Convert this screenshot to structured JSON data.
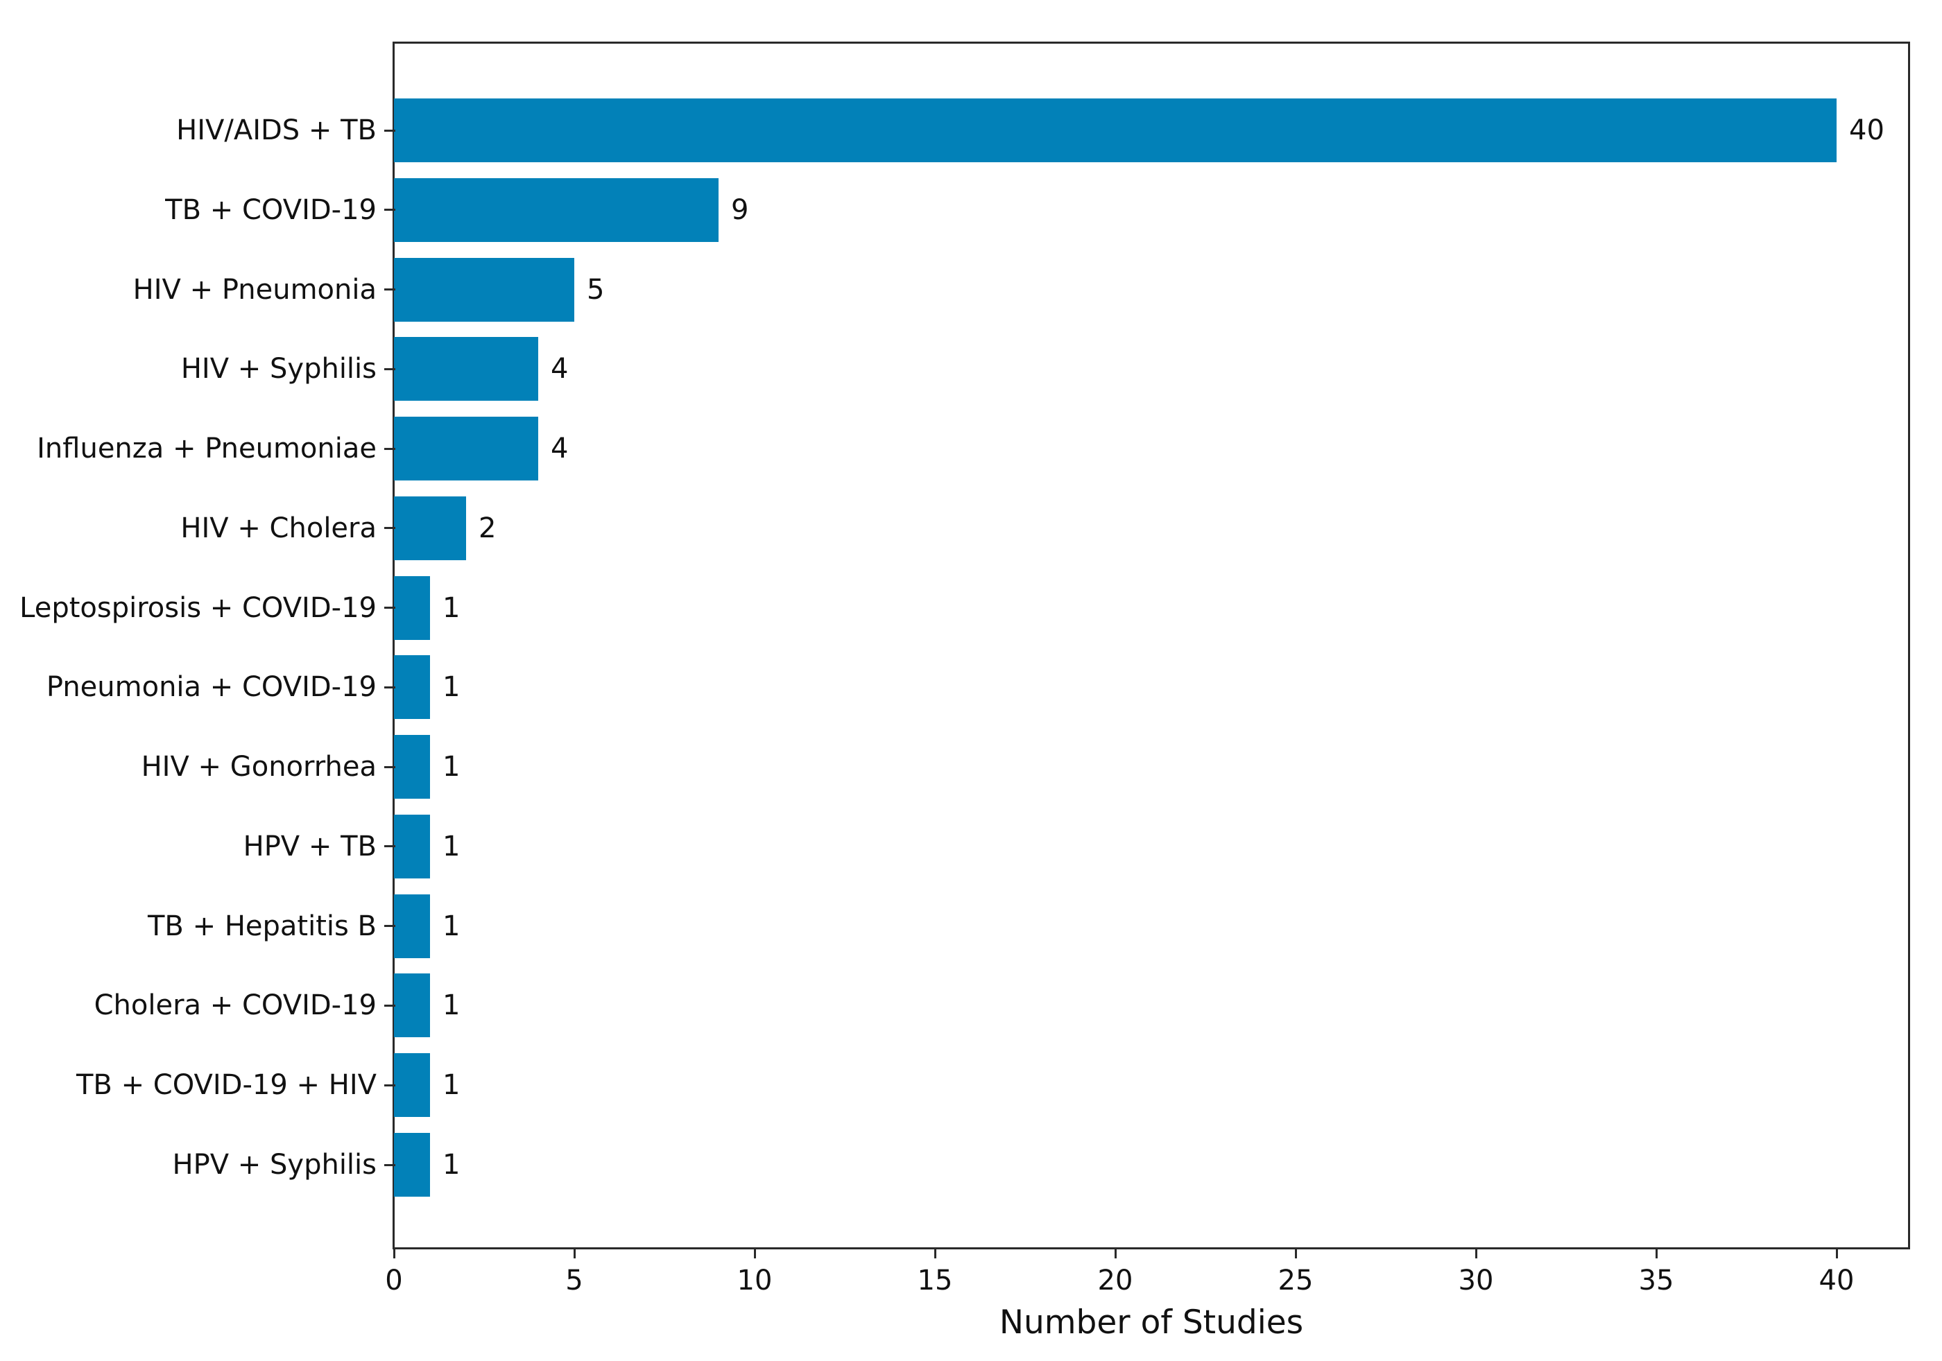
{
  "chart_data": {
    "type": "bar",
    "orientation": "horizontal",
    "title": "",
    "xlabel": "Number of Studies",
    "ylabel": "",
    "categories": [
      "HIV/AIDS + TB",
      "TB + COVID-19",
      "HIV + Pneumonia",
      "HIV + Syphilis",
      "Influenza + Pneumoniae",
      "HIV + Cholera",
      "Leptospirosis + COVID-19",
      "Pneumonia + COVID-19",
      "HIV + Gonorrhea",
      "HPV + TB",
      "TB + Hepatitis B",
      "Cholera + COVID-19",
      "TB + COVID-19 + HIV",
      "HPV + Syphilis"
    ],
    "values": [
      40,
      9,
      5,
      4,
      4,
      2,
      1,
      1,
      1,
      1,
      1,
      1,
      1,
      1
    ],
    "bar_value_labels": [
      "40",
      "9",
      "5",
      "4",
      "4",
      "2",
      "1",
      "1",
      "1",
      "1",
      "1",
      "1",
      "1",
      "1"
    ],
    "xlim": [
      0,
      42
    ],
    "xticks": [
      0,
      5,
      10,
      15,
      20,
      25,
      30,
      35,
      40
    ],
    "xtick_labels": [
      "0",
      "5",
      "10",
      "15",
      "20",
      "25",
      "30",
      "35",
      "40"
    ],
    "grid": false,
    "legend": null,
    "bar_color": "#0281b8",
    "spine_color": "#2a2a2a",
    "text_color": "#111111",
    "background_color": "#ffffff"
  }
}
